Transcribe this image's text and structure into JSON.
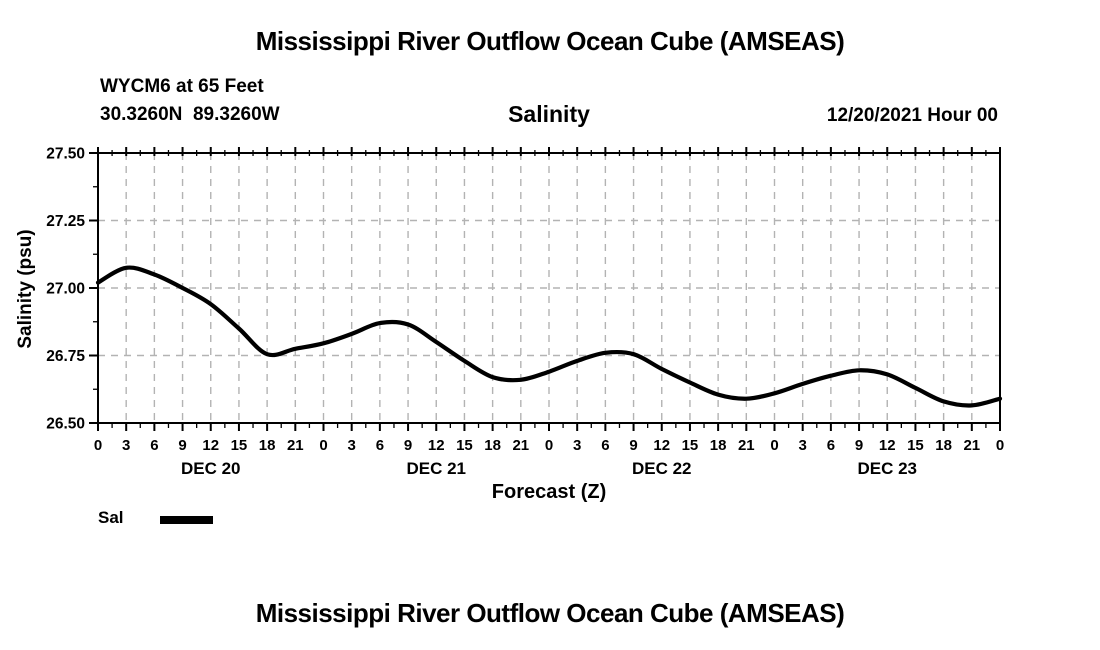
{
  "header": {
    "title": "Mississippi River Outflow Ocean Cube (AMSEAS)",
    "station_line1": "WYCM6 at 65 Feet",
    "station_line2": "30.3260N  89.3260W",
    "plot_subtitle": "Salinity",
    "run_datetime": "12/20/2021 Hour 00"
  },
  "footer": {
    "title": "Mississippi River Outflow Ocean Cube (AMSEAS)"
  },
  "legend": {
    "label": "Sal",
    "swatch_color": "#000000"
  },
  "chart_data": {
    "type": "line",
    "title": "Salinity",
    "xlabel": "Forecast (Z)",
    "ylabel": "Salinity (psu)",
    "ylim": [
      26.5,
      27.5
    ],
    "yticks": [
      26.5,
      26.75,
      27.0,
      27.25,
      27.5
    ],
    "y_minor_step": 0.125,
    "x_hours_range": [
      0,
      96
    ],
    "x_major_step_hours": 3,
    "x_minor_step_hours": 1.5,
    "x_hour_label_modulo": 24,
    "day_labels": [
      "DEC 20",
      "DEC 21",
      "DEC 22",
      "DEC 23"
    ],
    "grid": {
      "show": true,
      "color": "#b3b3b3",
      "style": "dashed"
    },
    "line_color": "#000000",
    "x": [
      0,
      3,
      6,
      9,
      12,
      15,
      18,
      21,
      24,
      27,
      30,
      33,
      36,
      39,
      42,
      45,
      48,
      51,
      54,
      57,
      60,
      63,
      66,
      69,
      72,
      75,
      78,
      81,
      84,
      87,
      90,
      93,
      96
    ],
    "series": [
      {
        "name": "Sal",
        "values": [
          27.02,
          27.075,
          27.05,
          27.0,
          26.94,
          26.85,
          26.755,
          26.775,
          26.795,
          26.83,
          26.87,
          26.865,
          26.8,
          26.73,
          26.67,
          26.66,
          26.69,
          26.73,
          26.76,
          26.755,
          26.7,
          26.65,
          26.605,
          26.59,
          26.61,
          26.645,
          26.675,
          26.695,
          26.68,
          26.63,
          26.58,
          26.565,
          26.59
        ]
      }
    ]
  }
}
